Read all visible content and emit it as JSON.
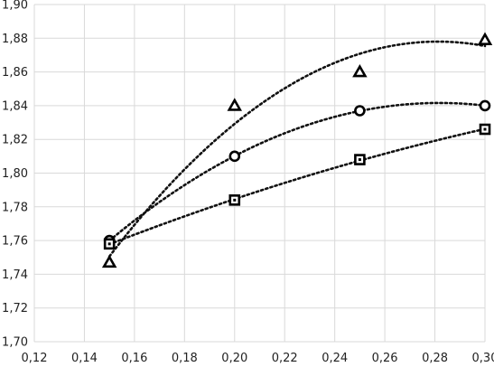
{
  "chart_data": {
    "type": "scatter",
    "xlim": [
      0.12,
      0.3
    ],
    "ylim": [
      1.7,
      1.9
    ],
    "x_ticks": [
      "0,12",
      "0,14",
      "0,16",
      "0,18",
      "0,20",
      "0,22",
      "0,24",
      "0,26",
      "0,28",
      "0,30"
    ],
    "y_ticks": [
      "1,70",
      "1,72",
      "1,74",
      "1,76",
      "1,78",
      "1,80",
      "1,82",
      "1,84",
      "1,86",
      "1,88",
      "1,90"
    ],
    "grid": true,
    "legend": "none",
    "series": [
      {
        "marker": "triangle",
        "points": [
          {
            "x": 0.15,
            "y": 1.747
          },
          {
            "x": 0.2,
            "y": 1.84
          },
          {
            "x": 0.25,
            "y": 1.86
          },
          {
            "x": 0.3,
            "y": 1.879
          }
        ],
        "trendline": {
          "type": "polynomial",
          "order": 2
        }
      },
      {
        "marker": "circle",
        "points": [
          {
            "x": 0.15,
            "y": 1.76
          },
          {
            "x": 0.2,
            "y": 1.81
          },
          {
            "x": 0.25,
            "y": 1.837
          },
          {
            "x": 0.3,
            "y": 1.84
          }
        ],
        "trendline": {
          "type": "polynomial",
          "order": 2
        }
      },
      {
        "marker": "square",
        "points": [
          {
            "x": 0.15,
            "y": 1.758
          },
          {
            "x": 0.2,
            "y": 1.784
          },
          {
            "x": 0.25,
            "y": 1.808
          },
          {
            "x": 0.3,
            "y": 1.826
          }
        ],
        "trendline": {
          "type": "polynomial",
          "order": 2
        }
      }
    ]
  }
}
